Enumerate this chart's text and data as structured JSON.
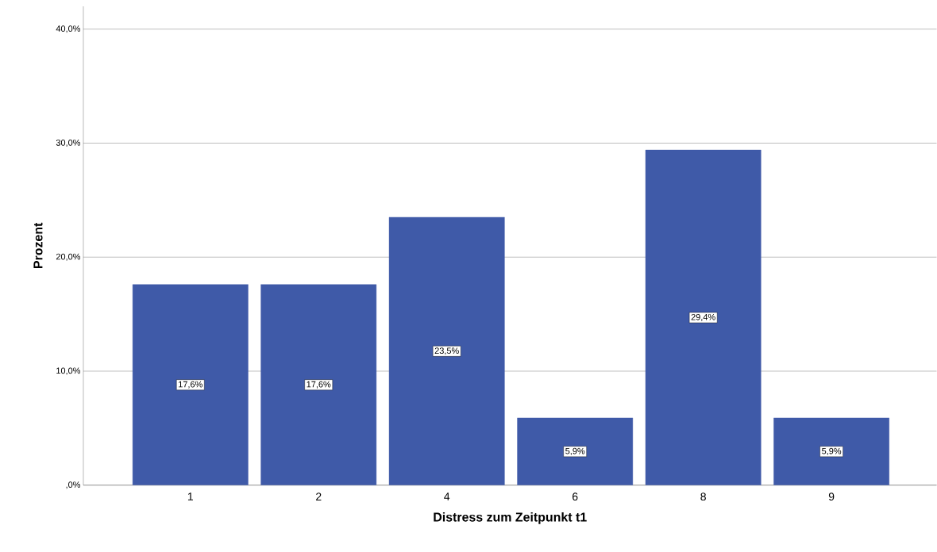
{
  "chart_data": {
    "type": "bar",
    "xlabel": "Distress zum Zeitpunkt t1",
    "ylabel": "Prozent",
    "categories": [
      "1",
      "2",
      "4",
      "6",
      "8",
      "9"
    ],
    "values": [
      17.6,
      17.6,
      23.5,
      5.9,
      29.4,
      5.9
    ],
    "value_labels": [
      "17,6%",
      "17,6%",
      "23,5%",
      "5,9%",
      "29,4%",
      "5,9%"
    ],
    "color": "#3f5aa8",
    "ylim": [
      0,
      42
    ],
    "yticks": [
      {
        "value": 0,
        "label": ",0%"
      },
      {
        "value": 10,
        "label": "10,0%"
      },
      {
        "value": 20,
        "label": "20,0%"
      },
      {
        "value": 30,
        "label": "30,0%"
      },
      {
        "value": 40,
        "label": "40,0%"
      }
    ],
    "grid": "y"
  }
}
